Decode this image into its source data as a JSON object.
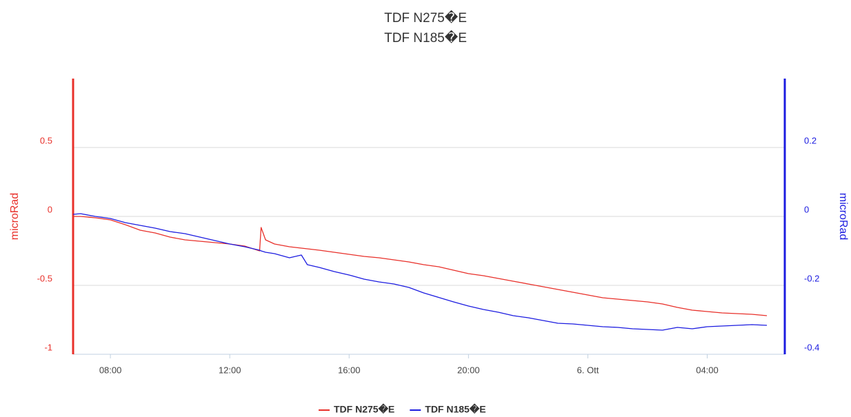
{
  "chart_data": {
    "type": "line",
    "title": "TDF N275�E",
    "subtitle": "TDF N185�E",
    "ylabel": "microRad",
    "y2label": "microRad",
    "x": [
      6.75,
      7,
      7.5,
      8,
      8.5,
      9,
      9.5,
      10,
      10.5,
      11,
      11.5,
      12,
      12.5,
      13,
      13.05,
      13.2,
      13.5,
      14,
      14.4,
      14.6,
      15,
      15.5,
      16,
      16.5,
      17,
      17.5,
      18,
      18.5,
      19,
      19.5,
      20,
      20.5,
      21,
      21.5,
      22,
      22.5,
      23,
      23.5,
      24,
      24.5,
      25,
      25.5,
      26,
      26.5,
      27,
      27.5,
      28,
      28.5,
      29,
      29.5,
      30
    ],
    "series": [
      {
        "name": "TDF N275�E",
        "color": "#e8302a",
        "axis": "y",
        "values": [
          0,
          0,
          -0.01,
          -0.025,
          -0.06,
          -0.1,
          -0.12,
          -0.15,
          -0.17,
          -0.18,
          -0.19,
          -0.2,
          -0.215,
          -0.25,
          -0.08,
          -0.17,
          -0.2,
          -0.22,
          -0.23,
          -0.235,
          -0.245,
          -0.26,
          -0.275,
          -0.29,
          -0.3,
          -0.315,
          -0.33,
          -0.35,
          -0.365,
          -0.39,
          -0.415,
          -0.43,
          -0.45,
          -0.47,
          -0.49,
          -0.51,
          -0.53,
          -0.55,
          -0.57,
          -0.59,
          -0.6,
          -0.61,
          -0.62,
          -0.635,
          -0.66,
          -0.68,
          -0.69,
          -0.7,
          -0.705,
          -0.71,
          -0.72
        ]
      },
      {
        "name": "TDF N185�E",
        "color": "#1c1ce0",
        "axis": "y2",
        "values": [
          0.006,
          0.008,
          0,
          -0.006,
          -0.018,
          -0.026,
          -0.034,
          -0.044,
          -0.05,
          -0.06,
          -0.07,
          -0.08,
          -0.088,
          -0.098,
          -0.1,
          -0.104,
          -0.108,
          -0.12,
          -0.112,
          -0.14,
          -0.148,
          -0.16,
          -0.17,
          -0.182,
          -0.19,
          -0.196,
          -0.206,
          -0.222,
          -0.235,
          -0.248,
          -0.26,
          -0.27,
          -0.278,
          -0.288,
          -0.294,
          -0.302,
          -0.31,
          -0.312,
          -0.316,
          -0.32,
          -0.322,
          -0.326,
          -0.328,
          -0.33,
          -0.322,
          -0.326,
          -0.32,
          -0.318,
          -0.316,
          -0.314,
          -0.316
        ]
      }
    ],
    "xlim": [
      6.75,
      30.6
    ],
    "xticks": [
      {
        "value": 8,
        "label": "08:00"
      },
      {
        "value": 12,
        "label": "12:00"
      },
      {
        "value": 16,
        "label": "16:00"
      },
      {
        "value": 20,
        "label": "20:00"
      },
      {
        "value": 24,
        "label": "6. Ott"
      },
      {
        "value": 28,
        "label": "04:00"
      }
    ],
    "ylim": [
      -1,
      1
    ],
    "yticks": [
      -1,
      -0.5,
      0,
      0.5
    ],
    "y2lim": [
      -0.4,
      0.4
    ],
    "y2ticks": [
      -0.4,
      -0.2,
      0,
      0.2
    ],
    "grid": true,
    "legend": "bottom"
  }
}
